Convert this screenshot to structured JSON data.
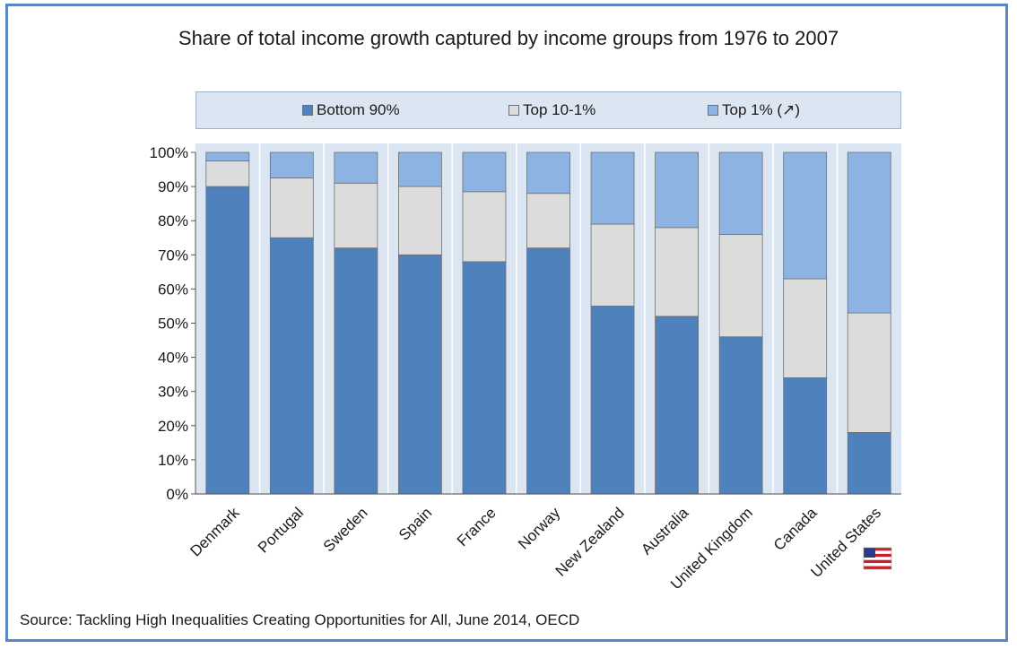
{
  "chart_data": {
    "type": "bar",
    "stacked": true,
    "title": "Share of total income growth captured by income groups from 1976 to 2007",
    "categories": [
      "Denmark",
      "Portugal",
      "Sweden",
      "Spain",
      "France",
      "Norway",
      "New Zealand",
      "Australia",
      "United Kingdom",
      "Canada",
      "United States"
    ],
    "series": [
      {
        "name": "Bottom 90%",
        "color": "#4f81bd",
        "values": [
          90,
          75,
          72,
          70,
          68,
          72,
          55,
          52,
          46,
          34,
          18
        ]
      },
      {
        "name": "Top 10-1%",
        "color": "#dcdcdc",
        "values": [
          7.5,
          17.5,
          19,
          20,
          20.5,
          16,
          24,
          26,
          30,
          29,
          35
        ]
      },
      {
        "name": "Top 1% (↗)",
        "color": "#8db3e2",
        "values": [
          2.5,
          7.5,
          9,
          10,
          11.5,
          12,
          21,
          22,
          24,
          37,
          47
        ]
      }
    ],
    "yticks": [
      "0%",
      "10%",
      "20%",
      "30%",
      "40%",
      "50%",
      "60%",
      "70%",
      "80%",
      "90%",
      "100%"
    ],
    "ylim": [
      0,
      100
    ],
    "legend_position": "top",
    "grid": false,
    "flag_icon": "us-flag-icon"
  },
  "source": "Source: Tackling High Inequalities Creating Opportunities for All, June 2014, OECD"
}
